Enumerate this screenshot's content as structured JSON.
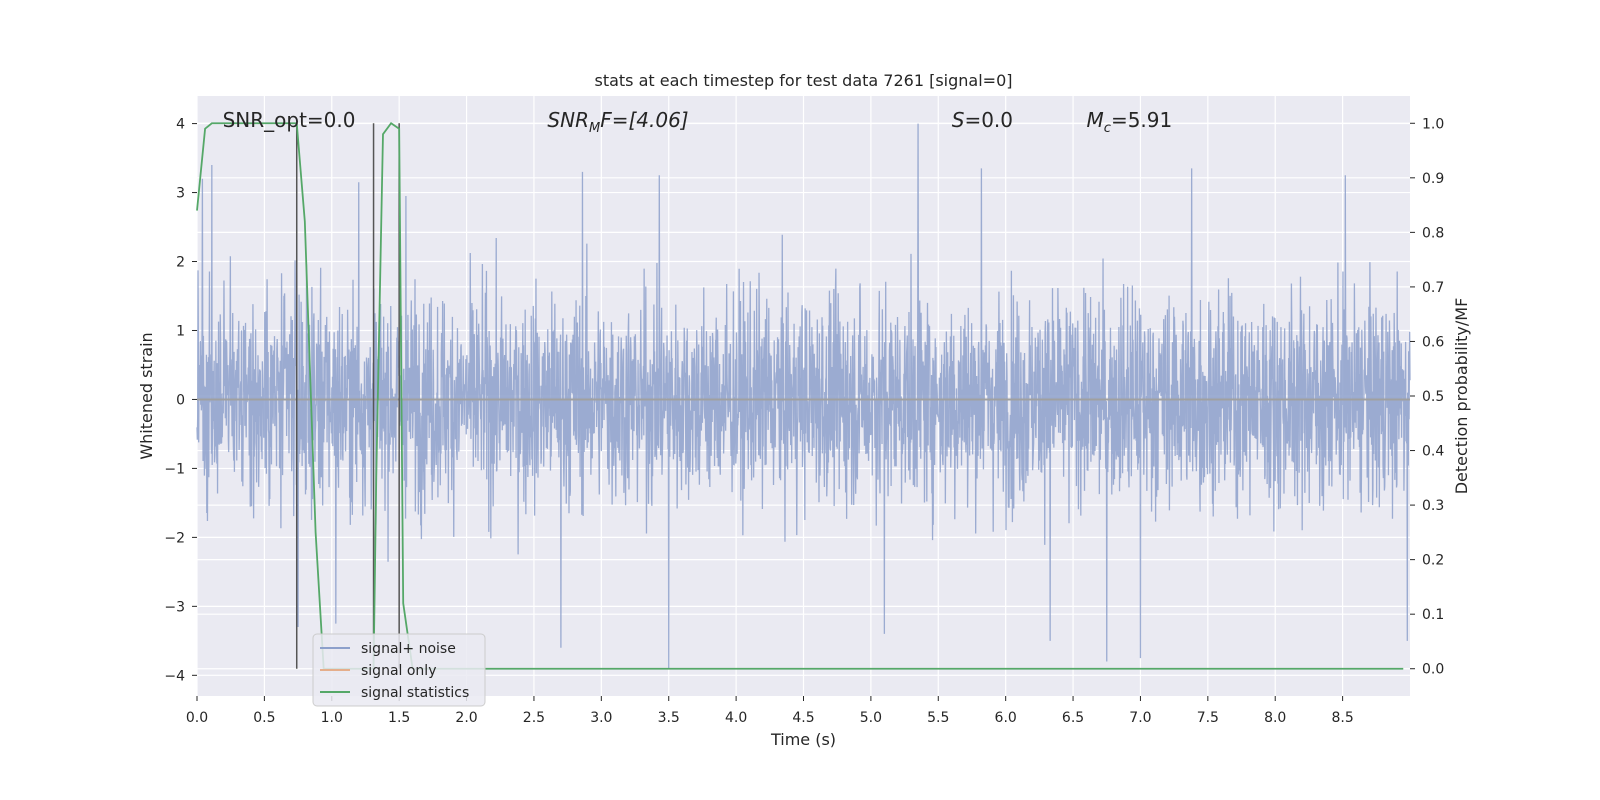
{
  "chart_data": {
    "type": "line",
    "title": "stats at each timestep for test data 7261 [signal=0]",
    "xlabel": "Time (s)",
    "ylabel_left": "Whitened strain",
    "ylabel_right": "Detection probability/MF",
    "xlim": [
      0.0,
      9.0
    ],
    "ylim_left": [
      -4.3,
      4.4
    ],
    "ylim_right": [
      -0.05,
      1.05
    ],
    "x_ticks": [
      "0.0",
      "0.5",
      "1.0",
      "1.5",
      "2.0",
      "2.5",
      "3.0",
      "3.5",
      "4.0",
      "4.5",
      "5.0",
      "5.5",
      "6.0",
      "6.5",
      "7.0",
      "7.5",
      "8.0",
      "8.5"
    ],
    "y_ticks_left": [
      "4",
      "3",
      "2",
      "1",
      "0",
      "−1",
      "−2",
      "−3",
      "−4"
    ],
    "y_ticks_right": [
      "1.0",
      "0.9",
      "0.8",
      "0.7",
      "0.6",
      "0.5",
      "0.4",
      "0.3",
      "0.2",
      "0.1",
      "0.0"
    ],
    "grid": true,
    "legend_position": "lower-left",
    "background": "#eaeaf2",
    "annotations": {
      "snr_opt": "SNR_opt=0.0",
      "snr_mf_base": "SNR",
      "snr_mf_sub": "M",
      "snr_mf_rest": "F=[4.06]",
      "s_base": "S",
      "s_rest": "=0.0",
      "mc_base": "M",
      "mc_sub": "c",
      "mc_rest": "=5.91"
    },
    "series": [
      {
        "name": "signal+ noise",
        "color": "#8da0cb",
        "description_values": "dense whitened noise, mostly within ±2, peaks up to about 4.0 at t≈5.35 and down to about -3.9 at t≈3.5",
        "peaks": [
          {
            "x": 0.04,
            "y": 3.2
          },
          {
            "x": 0.11,
            "y": 3.4
          },
          {
            "x": 0.74,
            "y": 3.05
          },
          {
            "x": 1.2,
            "y": 3.15
          },
          {
            "x": 1.55,
            "y": 2.95
          },
          {
            "x": 2.86,
            "y": 3.3
          },
          {
            "x": 3.43,
            "y": 3.25
          },
          {
            "x": 5.35,
            "y": 4.0
          },
          {
            "x": 5.82,
            "y": 3.35
          },
          {
            "x": 7.38,
            "y": 3.35
          },
          {
            "x": 8.52,
            "y": 3.25
          }
        ],
        "troughs": [
          {
            "x": 0.75,
            "y": -3.3
          },
          {
            "x": 1.03,
            "y": -3.25
          },
          {
            "x": 2.7,
            "y": -3.6
          },
          {
            "x": 3.5,
            "y": -3.9
          },
          {
            "x": 5.1,
            "y": -3.4
          },
          {
            "x": 6.33,
            "y": -3.5
          },
          {
            "x": 6.75,
            "y": -3.8
          },
          {
            "x": 7.0,
            "y": -3.75
          },
          {
            "x": 8.98,
            "y": -3.5
          }
        ]
      },
      {
        "name": "signal only",
        "color": "#e5ae8b",
        "values_constant": 0.0
      },
      {
        "name": "signal statistics",
        "color": "#55a868",
        "axis": "right",
        "x": [
          0.0,
          0.06,
          0.11,
          0.2,
          0.4,
          0.6,
          0.74,
          0.8,
          0.88,
          0.94,
          1.0,
          1.2,
          1.31,
          1.33,
          1.38,
          1.44,
          1.5,
          1.53,
          1.6,
          1.8,
          2.5,
          4.0,
          6.0,
          8.0,
          8.95
        ],
        "y": [
          0.84,
          0.99,
          1.0,
          1.0,
          1.0,
          1.0,
          1.0,
          0.82,
          0.25,
          0.0,
          0.0,
          0.0,
          0.0,
          0.35,
          0.98,
          1.0,
          0.99,
          0.12,
          0.0,
          0.0,
          0.0,
          0.0,
          0.0,
          0.0,
          0.0
        ]
      }
    ],
    "vertical_markers": [
      {
        "x": 0.74,
        "color": "#555555"
      },
      {
        "x": 1.31,
        "color": "#555555"
      },
      {
        "x": 1.5,
        "color": "#555555"
      }
    ]
  }
}
